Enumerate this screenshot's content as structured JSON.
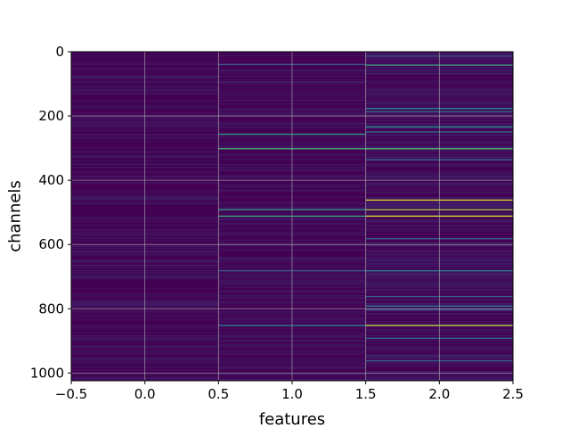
{
  "chart_data": {
    "type": "heatmap",
    "title": "",
    "xlabel": "features",
    "ylabel": "channels",
    "xlim": [
      -0.5,
      2.5
    ],
    "ylim": [
      1024,
      0
    ],
    "y_inverted": true,
    "grid": true,
    "colormap": "viridis",
    "background_color": "#440154",
    "x_ticks": [
      -0.5,
      0.0,
      0.5,
      1.0,
      1.5,
      2.0,
      2.5
    ],
    "x_tick_labels": [
      "−0.5",
      "0.0",
      "0.5",
      "1.0",
      "1.5",
      "2.0",
      "2.5"
    ],
    "y_ticks": [
      0,
      200,
      400,
      600,
      800,
      1000
    ],
    "y_tick_labels": [
      "0",
      "200",
      "400",
      "600",
      "800",
      "1000"
    ],
    "columns": [
      0,
      1,
      2
    ],
    "n_channels": 1024,
    "value_range": [
      0,
      1
    ],
    "highlighted_rows": [
      {
        "column": 1,
        "channel": 38,
        "value": 0.3
      },
      {
        "column": 1,
        "channel": 255,
        "value": 0.55
      },
      {
        "column": 1,
        "channel": 300,
        "value": 0.65
      },
      {
        "column": 1,
        "channel": 490,
        "value": 0.55
      },
      {
        "column": 1,
        "channel": 510,
        "value": 0.6
      },
      {
        "column": 1,
        "channel": 680,
        "value": 0.3
      },
      {
        "column": 1,
        "channel": 850,
        "value": 0.45
      },
      {
        "column": 2,
        "channel": 12,
        "value": 0.25
      },
      {
        "column": 2,
        "channel": 40,
        "value": 0.6
      },
      {
        "column": 2,
        "channel": 175,
        "value": 0.45
      },
      {
        "column": 2,
        "channel": 185,
        "value": 0.35
      },
      {
        "column": 2,
        "channel": 232,
        "value": 0.5
      },
      {
        "column": 2,
        "channel": 248,
        "value": 0.4
      },
      {
        "column": 2,
        "channel": 300,
        "value": 0.7
      },
      {
        "column": 2,
        "channel": 335,
        "value": 0.35
      },
      {
        "column": 2,
        "channel": 460,
        "value": 0.95
      },
      {
        "column": 2,
        "channel": 490,
        "value": 0.85
      },
      {
        "column": 2,
        "channel": 510,
        "value": 0.95
      },
      {
        "column": 2,
        "channel": 580,
        "value": 0.3
      },
      {
        "column": 2,
        "channel": 680,
        "value": 0.4
      },
      {
        "column": 2,
        "channel": 760,
        "value": 0.3
      },
      {
        "column": 2,
        "channel": 790,
        "value": 0.4
      },
      {
        "column": 2,
        "channel": 800,
        "value": 0.35
      },
      {
        "column": 2,
        "channel": 850,
        "value": 0.9
      },
      {
        "column": 2,
        "channel": 890,
        "value": 0.35
      },
      {
        "column": 2,
        "channel": 960,
        "value": 0.3
      }
    ]
  }
}
